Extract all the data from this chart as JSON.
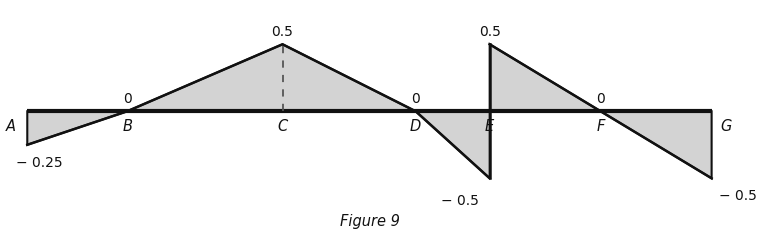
{
  "fig_width": 7.68,
  "fig_height": 2.4,
  "dpi": 100,
  "points": {
    "A": 0.05,
    "B": 1.4,
    "C": 3.5,
    "D": 5.3,
    "E": 6.3,
    "F": 7.8,
    "G": 9.3
  },
  "values": {
    "A": -0.25,
    "B": 0.0,
    "C": 0.5,
    "D": 0.0,
    "E_low": -0.5,
    "E_high": 0.5,
    "F": 0.0,
    "G": -0.5
  },
  "shade_color": "#d3d3d3",
  "line_color": "#111111",
  "dashed_color": "#555555",
  "figure_label": "Figure 9",
  "xlim": [
    -0.3,
    10.0
  ],
  "ylim": [
    -0.95,
    0.82
  ]
}
